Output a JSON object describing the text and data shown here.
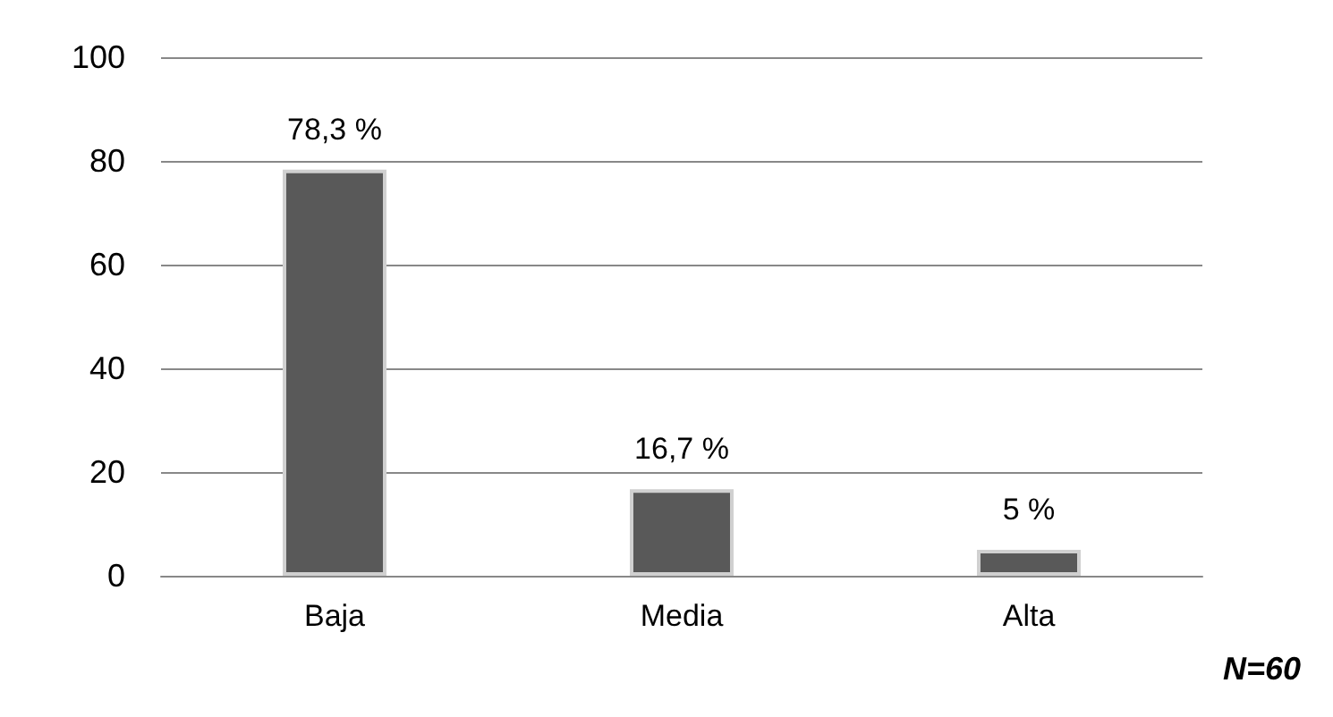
{
  "chart_data": {
    "type": "bar",
    "categories": [
      "Baja",
      "Media",
      "Alta"
    ],
    "values": [
      78.3,
      16.7,
      5
    ],
    "color": "#595959",
    "value_labels": [
      "78,3 %",
      "16,7 %",
      "5 %"
    ],
    "ylim": [
      0,
      100
    ],
    "yticks": [
      0,
      20,
      40,
      60,
      80,
      100
    ],
    "grid": "y",
    "annotations": [
      "N=60"
    ]
  }
}
